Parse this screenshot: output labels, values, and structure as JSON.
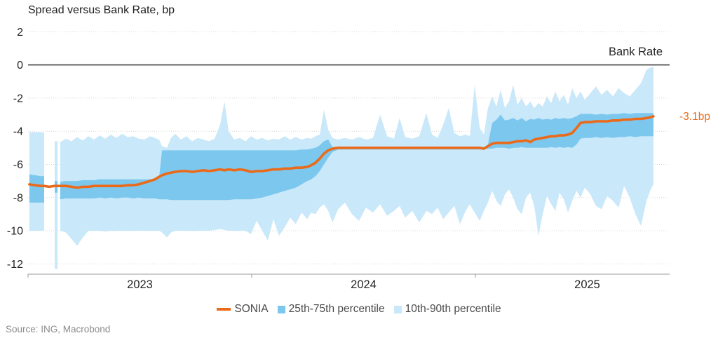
{
  "header": {
    "title": "Spread versus Bank Rate, bp"
  },
  "annotations": {
    "bank_rate_label": "Bank Rate",
    "last_value_label": "-3.1bp"
  },
  "source": "Source: ING, Macrobond",
  "colors": {
    "sonia": "#ea6a1a",
    "band_inner": "#7cc7ee",
    "band_outer": "#c9e8f9",
    "zero_line": "#404040",
    "grid": "#d8d8d8",
    "axis": "#9b9b9b",
    "text": "#262626",
    "source_text": "#8c8c8c"
  },
  "legend": [
    {
      "label": "SONIA",
      "marker": "line",
      "color": "#ea6a1a"
    },
    {
      "label": "25th-75th percentile",
      "marker": "square",
      "color": "#7cc7ee"
    },
    {
      "label": "10th-90th percentile",
      "marker": "square",
      "color": "#c9e8f9"
    }
  ],
  "chart_data": {
    "type": "area",
    "title": "Spread versus Bank Rate, bp",
    "xlabel": "",
    "ylabel": "bp",
    "ylim": [
      -12.6,
      2
    ],
    "grid": "dotted horizontal",
    "legend_position": "bottom center",
    "yticks": [
      2,
      0,
      -2,
      -4,
      -6,
      -8,
      -10,
      -12
    ],
    "xticks": [
      2023,
      2024,
      2025
    ],
    "bank_rate_reference_level": 0,
    "sonia_last_value_bp": -3.1,
    "series_fields": [
      "year_fraction",
      "sonia",
      "p75",
      "p25",
      "p90",
      "p10"
    ],
    "points": [
      [
        2023.006,
        -7.2,
        -6.6,
        -8.3,
        -4.05,
        -10.0
      ],
      [
        2023.031,
        -7.25,
        -6.65,
        -8.3,
        -4.05,
        -10.0
      ],
      [
        2023.056,
        -7.3,
        -6.7,
        -8.3,
        -4.05,
        -10.0
      ],
      [
        2023.072,
        -7.3,
        -6.7,
        -8.3,
        -4.1,
        -10.0
      ],
      [
        2023.094,
        -7.35,
        null,
        null,
        null,
        null
      ],
      [
        2023.119,
        -7.3,
        -7.0,
        -7.7,
        -4.6,
        -12.3
      ],
      [
        2023.132,
        -7.3,
        -7.0,
        -7.7,
        -4.6,
        -12.3
      ],
      [
        2023.138,
        -7.3,
        null,
        null,
        null,
        null
      ],
      [
        2023.144,
        -7.3,
        -7.05,
        -8.1,
        -4.65,
        -10.0
      ],
      [
        2023.169,
        -7.3,
        -7.0,
        -8.05,
        -4.45,
        -10.1
      ],
      [
        2023.194,
        -7.35,
        -7.0,
        -8.05,
        -4.6,
        -10.5
      ],
      [
        2023.219,
        -7.4,
        -7.0,
        -8.05,
        -4.35,
        -10.9
      ],
      [
        2023.245,
        -7.35,
        -6.95,
        -8.05,
        -4.55,
        -10.4
      ],
      [
        2023.27,
        -7.35,
        -6.95,
        -8.05,
        -4.3,
        -10.0
      ],
      [
        2023.295,
        -7.3,
        -6.95,
        -8.05,
        -4.5,
        -10.0
      ],
      [
        2023.32,
        -7.3,
        -6.9,
        -8.0,
        -4.25,
        -10.0
      ],
      [
        2023.345,
        -7.3,
        -6.9,
        -8.05,
        -4.45,
        -10.05
      ],
      [
        2023.37,
        -7.3,
        -6.9,
        -8.0,
        -4.2,
        -10.0
      ],
      [
        2023.395,
        -7.3,
        -6.9,
        -8.05,
        -4.4,
        -10.0
      ],
      [
        2023.42,
        -7.3,
        -6.9,
        -8.0,
        -4.15,
        -10.0
      ],
      [
        2023.445,
        -7.25,
        -6.9,
        -8.0,
        -4.35,
        -10.0
      ],
      [
        2023.47,
        -7.25,
        -6.9,
        -8.05,
        -4.3,
        -10.0
      ],
      [
        2023.495,
        -7.2,
        -6.9,
        -8.0,
        -4.45,
        -10.0
      ],
      [
        2023.52,
        -7.1,
        -6.9,
        -8.05,
        -4.5,
        -10.0
      ],
      [
        2023.545,
        -7.0,
        -6.9,
        -8.05,
        -4.3,
        -10.0
      ],
      [
        2023.567,
        -6.9,
        -6.85,
        -8.05,
        -4.4,
        -10.0
      ],
      [
        2023.586,
        -6.75,
        -6.8,
        -8.1,
        -4.5,
        -10.0
      ],
      [
        2023.599,
        -6.65,
        -5.15,
        -8.1,
        -4.9,
        -10.1
      ],
      [
        2023.621,
        -6.55,
        -5.15,
        -8.1,
        -5.0,
        -10.4
      ],
      [
        2023.639,
        -6.5,
        -5.15,
        -8.15,
        -4.4,
        -10.1
      ],
      [
        2023.658,
        -6.45,
        -5.15,
        -8.15,
        -4.15,
        -10.0
      ],
      [
        2023.683,
        -6.4,
        -5.15,
        -8.15,
        -4.5,
        -10.0
      ],
      [
        2023.708,
        -6.4,
        -5.15,
        -8.15,
        -4.3,
        -10.0
      ],
      [
        2023.734,
        -6.45,
        -5.15,
        -8.15,
        -4.6,
        -10.0
      ],
      [
        2023.759,
        -6.4,
        -5.15,
        -8.15,
        -4.4,
        -10.0
      ],
      [
        2023.784,
        -6.35,
        -5.15,
        -8.15,
        -4.5,
        -10.0
      ],
      [
        2023.809,
        -6.4,
        -5.15,
        -8.15,
        -4.6,
        -10.0
      ],
      [
        2023.834,
        -6.35,
        -5.15,
        -8.15,
        -4.45,
        -9.95
      ],
      [
        2023.859,
        -6.3,
        -5.15,
        -8.15,
        -3.6,
        -9.9
      ],
      [
        2023.878,
        -6.35,
        -5.15,
        -8.15,
        -2.2,
        -9.95
      ],
      [
        2023.897,
        -6.3,
        -5.15,
        -8.15,
        -4.0,
        -10.0
      ],
      [
        2023.922,
        -6.35,
        -5.15,
        -8.1,
        -4.5,
        -10.0
      ],
      [
        2023.947,
        -6.3,
        -5.15,
        -8.1,
        -4.4,
        -10.0
      ],
      [
        2023.972,
        -6.35,
        -5.15,
        -8.1,
        -4.6,
        -10.0
      ],
      [
        2023.997,
        -6.45,
        -5.15,
        -8.1,
        -4.3,
        -10.2
      ],
      [
        2024.022,
        -6.4,
        -5.15,
        -8.05,
        -4.5,
        -9.4
      ],
      [
        2024.047,
        -6.4,
        -5.15,
        -8.0,
        -4.4,
        -10.0
      ],
      [
        2024.072,
        -6.35,
        -5.15,
        -7.9,
        -4.55,
        -10.6
      ],
      [
        2024.097,
        -6.3,
        -5.15,
        -7.8,
        -4.45,
        -9.3
      ],
      [
        2024.122,
        -6.3,
        -5.15,
        -7.7,
        -4.5,
        -10.3
      ],
      [
        2024.147,
        -6.25,
        -5.15,
        -7.6,
        -4.3,
        -9.8
      ],
      [
        2024.172,
        -6.25,
        -5.15,
        -7.5,
        -4.5,
        -9.2
      ],
      [
        2024.197,
        -6.2,
        -5.15,
        -7.4,
        -4.35,
        -9.6
      ],
      [
        2024.223,
        -6.2,
        -5.1,
        -7.2,
        -4.5,
        -8.9
      ],
      [
        2024.248,
        -6.15,
        -5.1,
        -7.0,
        -4.4,
        -9.3
      ],
      [
        2024.266,
        -6.05,
        -5.05,
        -6.9,
        -4.45,
        -8.9
      ],
      [
        2024.285,
        -5.9,
        -5.0,
        -6.7,
        -4.3,
        -9.0
      ],
      [
        2024.304,
        -5.65,
        -4.85,
        -6.4,
        -4.2,
        -8.6
      ],
      [
        2024.323,
        -5.35,
        -4.6,
        -6.0,
        -2.7,
        -8.4
      ],
      [
        2024.342,
        -5.15,
        -4.5,
        -5.6,
        -3.9,
        -8.8
      ],
      [
        2024.361,
        -5.05,
        -4.95,
        -5.25,
        -4.4,
        -9.5
      ],
      [
        2024.386,
        -5.0,
        -4.95,
        -5.1,
        -4.5,
        -8.7
      ],
      [
        2024.417,
        -5.0,
        -4.95,
        -5.1,
        -4.4,
        -8.3
      ],
      [
        2024.448,
        -5.0,
        -4.95,
        -5.1,
        -4.5,
        -9.0
      ],
      [
        2024.48,
        -5.0,
        -4.95,
        -5.1,
        -4.35,
        -9.4
      ],
      [
        2024.511,
        -5.0,
        -4.95,
        -5.1,
        -4.5,
        -8.6
      ],
      [
        2024.542,
        -5.0,
        -4.95,
        -5.1,
        -4.4,
        -8.9
      ],
      [
        2024.574,
        -5.0,
        -4.95,
        -5.1,
        -3.0,
        -8.4
      ],
      [
        2024.605,
        -5.0,
        -4.95,
        -5.1,
        -4.3,
        -9.1
      ],
      [
        2024.636,
        -5.0,
        -4.95,
        -5.1,
        -4.45,
        -8.8
      ],
      [
        2024.661,
        -5.0,
        -4.95,
        -5.1,
        -3.2,
        -8.5
      ],
      [
        2024.686,
        -5.0,
        -4.95,
        -5.1,
        -4.35,
        -9.2
      ],
      [
        2024.718,
        -5.0,
        -4.95,
        -5.1,
        -4.45,
        -8.8
      ],
      [
        2024.749,
        -5.0,
        -4.95,
        -5.1,
        -4.3,
        -9.5
      ],
      [
        2024.781,
        -5.0,
        -4.95,
        -5.1,
        -2.9,
        -8.8
      ],
      [
        2024.806,
        -5.0,
        -4.95,
        -5.1,
        -4.2,
        -9.0
      ],
      [
        2024.831,
        -5.0,
        -4.95,
        -5.1,
        -4.4,
        -8.6
      ],
      [
        2024.856,
        -5.0,
        -4.95,
        -5.1,
        -3.6,
        -9.3
      ],
      [
        2024.881,
        -5.0,
        -4.95,
        -5.1,
        -2.6,
        -8.9
      ],
      [
        2024.906,
        -5.0,
        -4.95,
        -5.1,
        -4.1,
        -8.5
      ],
      [
        2024.931,
        -5.0,
        -4.95,
        -5.1,
        -4.3,
        -9.6
      ],
      [
        2024.956,
        -5.0,
        -4.95,
        -5.1,
        -4.2,
        -8.8
      ],
      [
        2024.975,
        -5.0,
        -4.95,
        -5.1,
        -4.3,
        -8.4
      ],
      [
        2024.997,
        -5.0,
        -4.95,
        -5.1,
        -1.2,
        -8.9
      ],
      [
        2025.019,
        -5.0,
        -4.95,
        -5.1,
        -3.8,
        -9.4
      ],
      [
        2025.038,
        -5.05,
        -4.95,
        -5.1,
        -4.2,
        -8.8
      ],
      [
        2025.056,
        -4.9,
        -4.8,
        -5.05,
        -2.6,
        -8.3
      ],
      [
        2025.075,
        -4.75,
        -3.5,
        -5.05,
        -1.9,
        -7.6
      ],
      [
        2025.094,
        -4.7,
        -3.3,
        -5.0,
        -2.5,
        -8.2
      ],
      [
        2025.113,
        -4.7,
        -3.0,
        -5.0,
        -1.5,
        -8.5
      ],
      [
        2025.132,
        -4.7,
        -3.35,
        -5.0,
        -2.6,
        -7.8
      ],
      [
        2025.15,
        -4.7,
        -3.3,
        -5.05,
        -2.2,
        -7.5
      ],
      [
        2025.169,
        -4.65,
        -3.2,
        -5.0,
        -1.2,
        -8.0
      ],
      [
        2025.188,
        -4.6,
        -3.35,
        -5.0,
        -2.4,
        -8.7
      ],
      [
        2025.207,
        -4.6,
        -3.2,
        -4.95,
        -2.0,
        -9.0
      ],
      [
        2025.226,
        -4.55,
        -3.4,
        -5.0,
        -2.5,
        -8.0
      ],
      [
        2025.245,
        -4.65,
        -3.25,
        -5.0,
        -2.2,
        -7.7
      ],
      [
        2025.263,
        -4.5,
        -3.3,
        -5.0,
        -2.6,
        -8.5
      ],
      [
        2025.282,
        -4.45,
        -3.2,
        -5.0,
        -2.3,
        -10.3
      ],
      [
        2025.301,
        -4.4,
        -3.3,
        -5.0,
        -2.5,
        -9.0
      ],
      [
        2025.32,
        -4.35,
        -3.25,
        -5.0,
        -1.9,
        -7.9
      ],
      [
        2025.339,
        -4.3,
        -3.3,
        -4.95,
        -2.3,
        -8.4
      ],
      [
        2025.357,
        -4.3,
        -3.2,
        -5.0,
        -1.6,
        -8.8
      ],
      [
        2025.376,
        -4.25,
        -3.25,
        -4.95,
        -2.2,
        -7.7
      ],
      [
        2025.395,
        -4.25,
        -3.2,
        -5.0,
        -1.8,
        -8.1
      ],
      [
        2025.414,
        -4.2,
        -3.25,
        -4.95,
        -2.4,
        -8.9
      ],
      [
        2025.433,
        -4.1,
        -3.2,
        -5.0,
        -1.4,
        -8.2
      ],
      [
        2025.452,
        -3.8,
        -3.1,
        -4.8,
        -2.0,
        -7.6
      ],
      [
        2025.47,
        -3.5,
        -2.95,
        -4.45,
        -1.6,
        -8.0
      ],
      [
        2025.489,
        -3.45,
        -2.95,
        -4.4,
        -2.1,
        -7.4
      ],
      [
        2025.514,
        -3.45,
        -2.95,
        -4.4,
        -1.7,
        -7.8
      ],
      [
        2025.539,
        -3.4,
        -3.0,
        -4.35,
        -1.3,
        -8.5
      ],
      [
        2025.564,
        -3.4,
        -2.95,
        -4.4,
        -1.8,
        -8.7
      ],
      [
        2025.589,
        -3.4,
        -3.0,
        -4.35,
        -1.5,
        -7.9
      ],
      [
        2025.615,
        -3.35,
        -2.95,
        -4.4,
        -1.9,
        -8.2
      ],
      [
        2025.64,
        -3.35,
        -2.95,
        -4.35,
        -1.4,
        -8.6
      ],
      [
        2025.665,
        -3.3,
        -2.9,
        -4.35,
        -1.7,
        -7.3
      ],
      [
        2025.69,
        -3.3,
        -2.95,
        -4.3,
        -1.9,
        -8.0
      ],
      [
        2025.715,
        -3.25,
        -2.9,
        -4.35,
        -1.5,
        -9.0
      ],
      [
        2025.74,
        -3.25,
        -2.9,
        -4.3,
        -1.1,
        -9.7
      ],
      [
        2025.765,
        -3.2,
        -2.9,
        -4.3,
        -0.3,
        -8.2
      ],
      [
        2025.784,
        -3.15,
        -2.9,
        -4.3,
        -0.15,
        -7.5
      ],
      [
        2025.796,
        -3.1,
        -2.9,
        -4.3,
        -0.1,
        -7.2
      ]
    ]
  }
}
